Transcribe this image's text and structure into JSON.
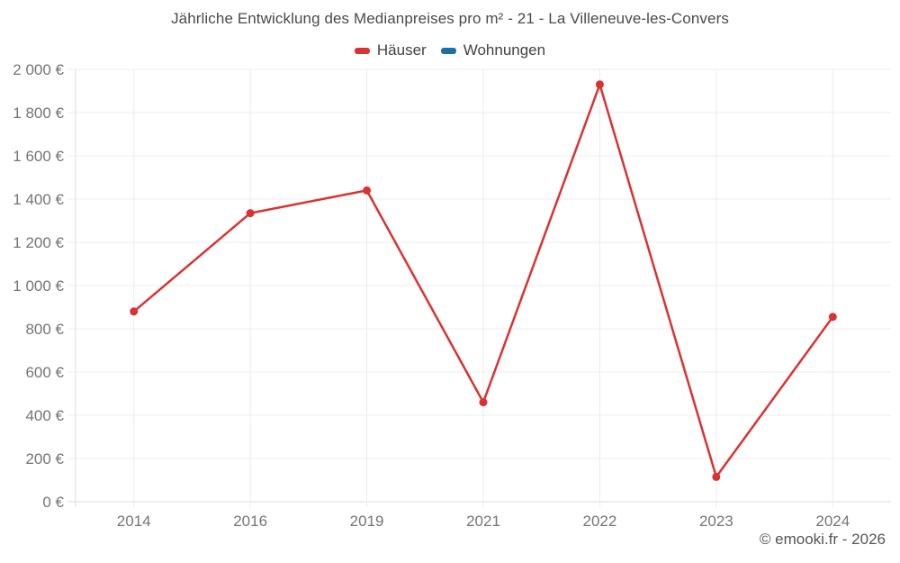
{
  "footer": {
    "credit": "© emooki.fr - 2026"
  },
  "chart_data": {
    "type": "line",
    "title": "Jährliche Entwicklung des Medianpreises pro m² - 21 - La Villeneuve-les-Convers",
    "categories": [
      "2014",
      "2016",
      "2019",
      "2021",
      "2022",
      "2023",
      "2024"
    ],
    "series": [
      {
        "name": "Häuser",
        "color": "#d93232",
        "values": [
          880,
          1335,
          1440,
          460,
          1930,
          115,
          855
        ]
      },
      {
        "name": "Wohnungen",
        "color": "#1c6fa5",
        "values": [
          null,
          null,
          null,
          null,
          null,
          null,
          null
        ]
      }
    ],
    "xlabel": "",
    "ylabel": "",
    "ylim": [
      0,
      2000
    ],
    "ytick_step": 200,
    "ytick_labels": [
      "0 €",
      "200 €",
      "400 €",
      "600 €",
      "800 €",
      "1 000 €",
      "1 200 €",
      "1 400 €",
      "1 600 €",
      "1 800 €",
      "2 000 €"
    ],
    "grid": true,
    "legend_position": "top",
    "colors": {
      "grid": "#ececec",
      "axis": "#dddddd",
      "tick_text": "#757575",
      "title_text": "#4a4a4a",
      "point_radius": 4.5
    }
  }
}
